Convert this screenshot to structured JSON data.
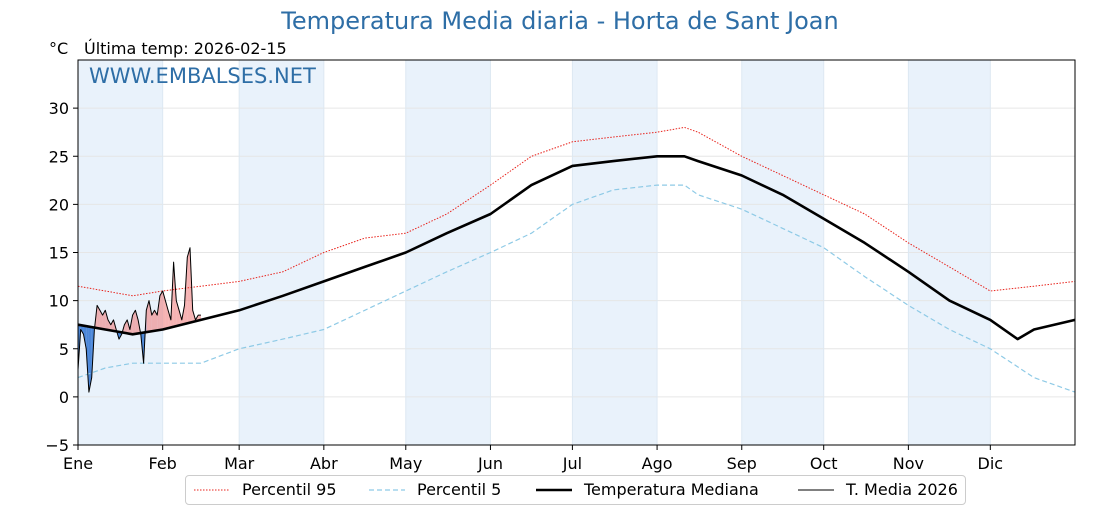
{
  "chart_data": {
    "type": "line",
    "title": "Temperatura Media diaria - Horta de Sant Joan",
    "subtitle": "Última temp: 2026-02-15",
    "ylabel": "°C",
    "watermark": "WWW.EMBALSES.NET",
    "ylim": [
      -5,
      35
    ],
    "yticks": [
      -5,
      0,
      5,
      10,
      15,
      20,
      25,
      30
    ],
    "ytick_labels": [
      "−5",
      "0",
      "5",
      "10",
      "15",
      "20",
      "25",
      "30"
    ],
    "x_unit": "day of year",
    "xlim": [
      0,
      365
    ],
    "month_labels": [
      "Ene",
      "Feb",
      "Mar",
      "Abr",
      "May",
      "Jun",
      "Jul",
      "Ago",
      "Sep",
      "Oct",
      "Nov",
      "Dic"
    ],
    "month_starts": [
      0,
      31,
      59,
      90,
      120,
      151,
      181,
      212,
      243,
      273,
      304,
      334
    ],
    "month_ends": [
      31,
      59,
      90,
      120,
      151,
      181,
      212,
      243,
      273,
      304,
      334,
      365
    ],
    "grid": true,
    "legend_position": "bottom-center",
    "colors": {
      "p95": "#e8231c",
      "p5": "#8ecae6",
      "median": "#000000",
      "current": "#000000",
      "above_fill": "#f08080",
      "below_fill": "#3a7bd5",
      "band": "#e9f2fb",
      "title": "#2e6ea6"
    },
    "series": [
      {
        "name": "Percentil 95",
        "key": "p95",
        "style": "dotted",
        "x": [
          0,
          10,
          20,
          31,
          45,
          59,
          75,
          90,
          105,
          120,
          135,
          151,
          166,
          181,
          196,
          212,
          222,
          227,
          243,
          258,
          273,
          288,
          304,
          319,
          334,
          350,
          365
        ],
        "y": [
          11.5,
          11.0,
          10.5,
          11.0,
          11.5,
          12.0,
          13.0,
          15.0,
          16.5,
          17.0,
          19.0,
          22.0,
          25.0,
          26.5,
          27.0,
          27.5,
          28.0,
          27.5,
          25.0,
          23.0,
          21.0,
          19.0,
          16.0,
          13.5,
          11.0,
          11.5,
          12.0
        ]
      },
      {
        "name": "Percentil 5",
        "key": "p5",
        "style": "dashed",
        "x": [
          0,
          10,
          20,
          31,
          45,
          59,
          75,
          90,
          105,
          120,
          135,
          151,
          166,
          181,
          196,
          212,
          222,
          227,
          243,
          258,
          273,
          288,
          304,
          319,
          334,
          350,
          365
        ],
        "y": [
          2.0,
          3.0,
          3.5,
          3.5,
          3.5,
          5.0,
          6.0,
          7.0,
          9.0,
          11.0,
          13.0,
          15.0,
          17.0,
          20.0,
          21.5,
          22.0,
          22.0,
          21.0,
          19.5,
          17.5,
          15.5,
          12.5,
          9.5,
          7.0,
          5.0,
          2.0,
          0.5
        ]
      },
      {
        "name": "Temperatura Mediana",
        "key": "median",
        "style": "solid-thick",
        "x": [
          0,
          10,
          20,
          31,
          45,
          59,
          75,
          90,
          105,
          120,
          135,
          151,
          166,
          181,
          196,
          212,
          222,
          227,
          243,
          258,
          273,
          288,
          304,
          319,
          334,
          344,
          350,
          365
        ],
        "y": [
          7.5,
          7.0,
          6.5,
          7.0,
          8.0,
          9.0,
          10.5,
          12.0,
          13.5,
          15.0,
          17.0,
          19.0,
          22.0,
          24.0,
          24.5,
          25.0,
          25.0,
          24.5,
          23.0,
          21.0,
          18.5,
          16.0,
          13.0,
          10.0,
          8.0,
          6.0,
          7.0,
          8.0
        ]
      },
      {
        "name": "T. Media 2026",
        "key": "current",
        "style": "solid-thin",
        "x": [
          0,
          1,
          2,
          3,
          4,
          5,
          6,
          7,
          8,
          9,
          10,
          11,
          12,
          13,
          14,
          15,
          16,
          17,
          18,
          19,
          20,
          21,
          22,
          23,
          24,
          25,
          26,
          27,
          28,
          29,
          30,
          31,
          32,
          33,
          34,
          35,
          36,
          37,
          38,
          39,
          40,
          41,
          42,
          43,
          44,
          45
        ],
        "y": [
          2.8,
          7.0,
          6.5,
          5.0,
          0.5,
          2.0,
          7.0,
          9.5,
          9.0,
          8.5,
          9.0,
          8.0,
          7.5,
          8.0,
          7.0,
          6.0,
          6.5,
          7.5,
          8.0,
          7.0,
          8.5,
          9.0,
          8.0,
          6.5,
          3.5,
          9.0,
          10.0,
          8.5,
          9.0,
          8.5,
          10.5,
          11.0,
          10.0,
          9.0,
          8.0,
          14.0,
          10.0,
          9.0,
          8.0,
          9.5,
          14.5,
          15.5,
          9.0,
          8.0,
          8.5,
          8.5
        ]
      }
    ]
  }
}
